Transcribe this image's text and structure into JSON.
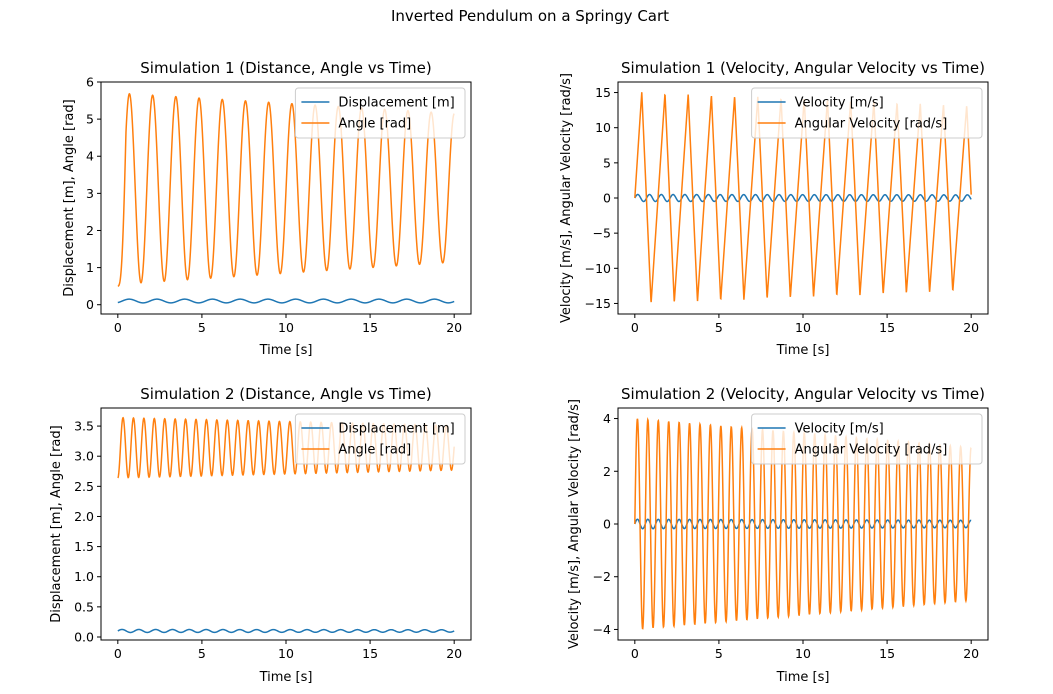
{
  "figure": {
    "suptitle": "Inverted Pendulum on a Springy Cart"
  },
  "colors": {
    "series1": "#1f77b4",
    "series2": "#ff7f0e"
  },
  "chart_data": [
    {
      "type": "line",
      "title": "Simulation 1 (Distance, Angle vs Time)",
      "xlabel": "Time [s]",
      "ylabel": "Displacement [m], Angle [rad]",
      "xlim": [
        -1,
        21
      ],
      "ylim": [
        -0.25,
        6
      ],
      "xticks": [
        "0",
        "5",
        "10",
        "15",
        "20"
      ],
      "yticks": [
        "0",
        "1",
        "2",
        "3",
        "4",
        "5",
        "6"
      ],
      "legend_position": "top-right",
      "series": [
        {
          "name": "Displacement [m]",
          "color": "#1f77b4",
          "kind": "decaying",
          "x0": 0,
          "x1": 20,
          "offset": 0.1,
          "amp0": 0.05,
          "amp1": 0.05,
          "period": 1.65,
          "phase": -1.0
        },
        {
          "name": "Angle [rad]",
          "color": "#ff7f0e",
          "kind": "pendulum",
          "x0": 0,
          "x1": 20,
          "top0": 5.7,
          "top1": 5.15,
          "bottom0": 0.55,
          "bottom1": 1.15,
          "start": 0.5,
          "end": 2.55,
          "period": 1.38
        }
      ]
    },
    {
      "type": "line",
      "title": "Simulation 1 (Velocity, Angular Velocity vs Time)",
      "xlabel": "Time [s]",
      "ylabel": "Velocity [m/s], Angular Velocity [rad/s]",
      "xlim": [
        -1,
        21
      ],
      "ylim": [
        -16.5,
        16.5
      ],
      "xticks": [
        "0",
        "5",
        "10",
        "15",
        "20"
      ],
      "yticks": [
        "-15",
        "-10",
        "-5",
        "0",
        "5",
        "10",
        "15"
      ],
      "legend_position": "top-right",
      "series": [
        {
          "name": "Velocity [m/s]",
          "color": "#1f77b4",
          "kind": "decaying",
          "x0": 0,
          "x1": 20,
          "offset": 0,
          "amp0": 0.5,
          "amp1": 0.45,
          "period": 0.7,
          "phase": 0
        },
        {
          "name": "Angular Velocity [rad/s]",
          "color": "#ff7f0e",
          "kind": "sawtooth",
          "x0": 0,
          "x1": 20,
          "hi0": 15.1,
          "hi1": 13.2,
          "lo0": -15.1,
          "lo1": -13.2,
          "start": 0,
          "end": -12.0,
          "period": 1.38,
          "rise": 0.3
        }
      ]
    },
    {
      "type": "line",
      "title": "Simulation 2 (Distance, Angle vs Time)",
      "xlabel": "Time [s]",
      "ylabel": "Displacement [m], Angle [rad]",
      "xlim": [
        -1,
        21
      ],
      "ylim": [
        -0.05,
        3.8
      ],
      "xticks": [
        "0",
        "5",
        "10",
        "15",
        "20"
      ],
      "yticks": [
        "0.0",
        "0.5",
        "1.0",
        "1.5",
        "2.0",
        "2.5",
        "3.0",
        "3.5"
      ],
      "legend_position": "top-right",
      "series": [
        {
          "name": "Displacement [m]",
          "color": "#1f77b4",
          "kind": "decaying",
          "x0": 0,
          "x1": 20,
          "offset": 0.1,
          "amp0": 0.025,
          "amp1": 0.02,
          "period": 1.0,
          "phase": 0
        },
        {
          "name": "Angle [rad]",
          "color": "#ff7f0e",
          "kind": "decaying",
          "x0": 0,
          "x1": 20,
          "offset": 3.14,
          "amp0": 0.5,
          "amp1": 0.37,
          "period": 0.62,
          "phase": -1.57
        }
      ]
    },
    {
      "type": "line",
      "title": "Simulation 2 (Velocity, Angular Velocity vs Time)",
      "xlabel": "Time [s]",
      "ylabel": "Velocity [m/s], Angular Velocity [rad/s]",
      "xlim": [
        -1,
        21
      ],
      "ylim": [
        -4.4,
        4.4
      ],
      "xticks": [
        "0",
        "5",
        "10",
        "15",
        "20"
      ],
      "yticks": [
        "-4",
        "-2",
        "0",
        "2",
        "4"
      ],
      "legend_position": "top-right",
      "series": [
        {
          "name": "Velocity [m/s]",
          "color": "#1f77b4",
          "kind": "decaying",
          "x0": 0,
          "x1": 20,
          "offset": 0,
          "amp0": 0.18,
          "amp1": 0.14,
          "period": 0.62,
          "phase": 0
        },
        {
          "name": "Angular Velocity [rad/s]",
          "color": "#ff7f0e",
          "kind": "decaying",
          "x0": 0,
          "x1": 20,
          "offset": 0,
          "amp0": 4.0,
          "amp1": 2.9,
          "period": 0.62,
          "phase": 0
        }
      ]
    }
  ]
}
